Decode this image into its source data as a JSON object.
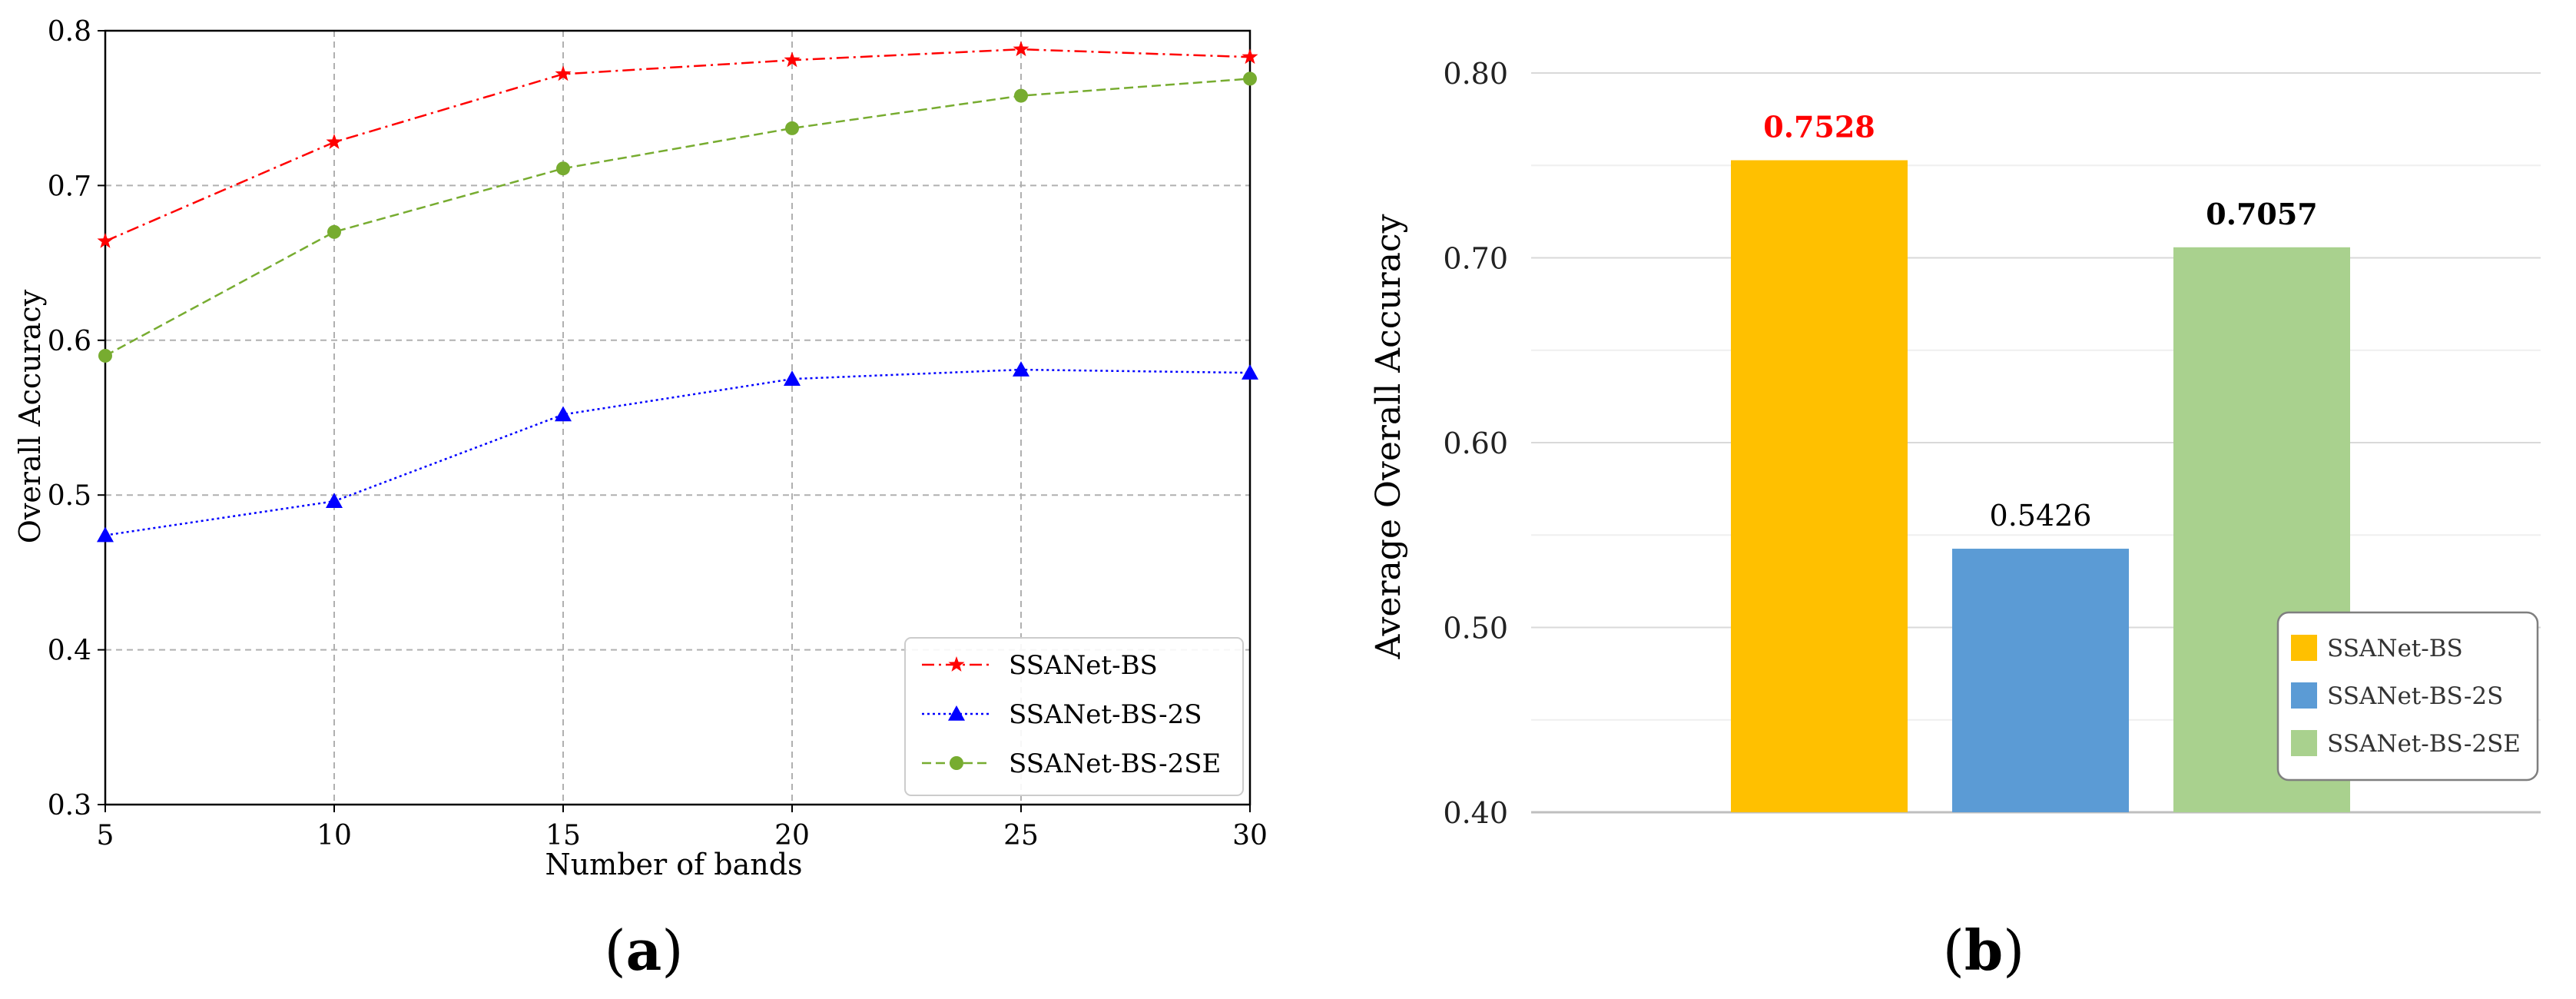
{
  "chart_data": [
    {
      "type": "line",
      "panel_label": "a",
      "xlabel": "Number of bands",
      "ylabel": "Overall Accuracy",
      "xlim": [
        5,
        30
      ],
      "ylim": [
        0.3,
        0.8
      ],
      "xticks": [
        "5",
        "10",
        "15",
        "20",
        "25",
        "30"
      ],
      "xtick_values": [
        5,
        10,
        15,
        20,
        25,
        30
      ],
      "yticks": [
        "0.3",
        "0.4",
        "0.5",
        "0.6",
        "0.7",
        "0.8"
      ],
      "ytick_values": [
        0.3,
        0.4,
        0.5,
        0.6,
        0.7,
        0.8
      ],
      "grid": true,
      "legend_position": "bottom-right",
      "x": [
        5,
        10,
        15,
        20,
        25,
        30
      ],
      "series": [
        {
          "name": "SSANet-BS",
          "values": [
            0.664,
            0.728,
            0.772,
            0.781,
            0.788,
            0.783
          ],
          "color": "#ff0000",
          "marker": "star",
          "dash": "dashdot"
        },
        {
          "name": "SSANet-BS-2S",
          "values": [
            0.474,
            0.496,
            0.552,
            0.575,
            0.581,
            0.579
          ],
          "color": "#0000ff",
          "marker": "triangle",
          "dash": "dotted"
        },
        {
          "name": "SSANet-BS-2SE",
          "values": [
            0.59,
            0.67,
            0.711,
            0.737,
            0.758,
            0.769
          ],
          "color": "#77ac30",
          "marker": "circle",
          "dash": "dashed"
        }
      ]
    },
    {
      "type": "bar",
      "panel_label": "b",
      "ylabel": "Average Overall Accuracy",
      "ylim": [
        0.4,
        0.8
      ],
      "yticks": [
        "0.40",
        "0.50",
        "0.60",
        "0.70",
        "0.80"
      ],
      "ytick_values": [
        0.4,
        0.5,
        0.6,
        0.7,
        0.8
      ],
      "grid": true,
      "legend_position": "right",
      "categories": [
        "SSANet-BS",
        "SSANet-BS-2S",
        "SSANet-BS-2SE"
      ],
      "values": [
        0.7528,
        0.5426,
        0.7057
      ],
      "value_labels": [
        "0.7528",
        "0.5426",
        "0.7057"
      ],
      "colors": [
        "#ffc000",
        "#5b9bd5",
        "#a9d18e"
      ],
      "label_colors": [
        "#ff0000",
        "#000000",
        "#000000"
      ],
      "label_bold": [
        true,
        false,
        true
      ]
    }
  ]
}
